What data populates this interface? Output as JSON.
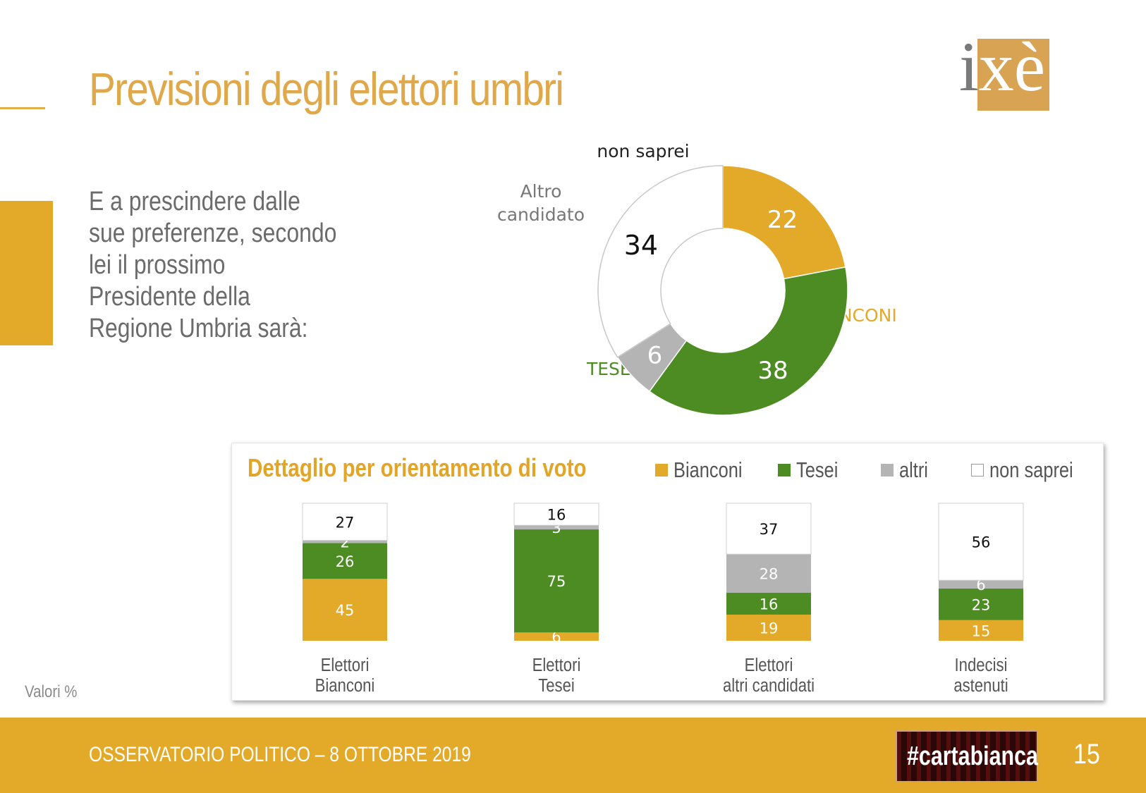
{
  "page": {
    "title": "Previsioni degli elettori umbri",
    "question": "E a prescindere dalle sue preferenze, secondo lei il prossimo Presidente della Regione Umbria sarà:",
    "valori": "Valori %",
    "footer_text": "OSSERVATORIO POLITICO – 8 OTTOBRE 2019",
    "badge": "#cartabianca",
    "page_number": "15",
    "logo_text": "ixè"
  },
  "colors": {
    "accent": "#e2aa28",
    "bianconi": "#e2aa28",
    "tesei": "#4c8c22",
    "altri": "#b4b4b4",
    "non_saprei": "#ffffff",
    "title": "#dfa84a"
  },
  "chart_data": [
    {
      "type": "pie",
      "variant": "donut",
      "slices": [
        {
          "name": "BIANCONI",
          "value": 22,
          "color": "#e2aa28"
        },
        {
          "name": "TESEI",
          "value": 38,
          "color": "#4c8c22"
        },
        {
          "name": "Altro candidato",
          "value": 6,
          "color": "#b4b4b4"
        },
        {
          "name": "non saprei",
          "value": 34,
          "color": "#ffffff"
        }
      ]
    },
    {
      "type": "bar",
      "stacked": true,
      "title": "Dettaglio per orientamento di voto",
      "categories": [
        "Elettori\nBianconi",
        "Elettori\nTesei",
        "Elettori\naltri candidati",
        "Indecisi\nastenuti"
      ],
      "series": [
        {
          "name": "Bianconi",
          "color": "#e2aa28",
          "values": [
            45,
            6,
            19,
            15
          ]
        },
        {
          "name": "Tesei",
          "color": "#4c8c22",
          "values": [
            26,
            75,
            16,
            23
          ]
        },
        {
          "name": "altri",
          "color": "#b4b4b4",
          "values": [
            2,
            3,
            28,
            6
          ]
        },
        {
          "name": "non saprei",
          "color": "#ffffff",
          "values": [
            27,
            16,
            37,
            56
          ]
        }
      ],
      "legend": "top"
    }
  ]
}
